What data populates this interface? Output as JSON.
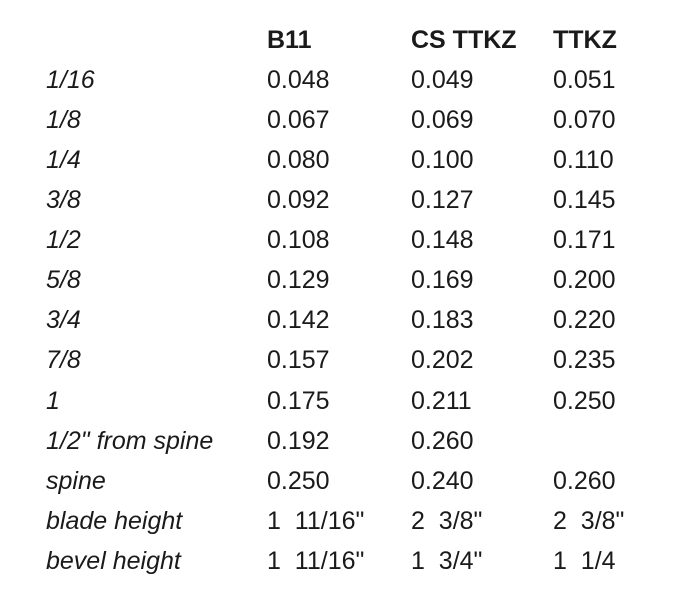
{
  "table": {
    "columns": [
      "",
      "B11",
      "CS TTKZ",
      "TTKZ"
    ],
    "rows": [
      {
        "label": "1/16",
        "b11": "0.048",
        "cs_ttkz": "0.049",
        "ttkz": "0.051"
      },
      {
        "label": "1/8",
        "b11": "0.067",
        "cs_ttkz": "0.069",
        "ttkz": "0.070"
      },
      {
        "label": "1/4",
        "b11": "0.080",
        "cs_ttkz": "0.100",
        "ttkz": "0.110"
      },
      {
        "label": "3/8",
        "b11": "0.092",
        "cs_ttkz": "0.127",
        "ttkz": "0.145"
      },
      {
        "label": "1/2",
        "b11": "0.108",
        "cs_ttkz": "0.148",
        "ttkz": "0.171"
      },
      {
        "label": "5/8",
        "b11": "0.129",
        "cs_ttkz": "0.169",
        "ttkz": "0.200"
      },
      {
        "label": "3/4",
        "b11": "0.142",
        "cs_ttkz": "0.183",
        "ttkz": "0.220"
      },
      {
        "label": "7/8",
        "b11": "0.157",
        "cs_ttkz": "0.202",
        "ttkz": "0.235"
      },
      {
        "label": "1",
        "b11": "0.175",
        "cs_ttkz": "0.211",
        "ttkz": "0.250"
      },
      {
        "label": "1/2\" from spine",
        "b11": "0.192",
        "cs_ttkz": "0.260",
        "ttkz": ""
      },
      {
        "label": "spine",
        "b11": "0.250",
        "cs_ttkz": "0.240",
        "ttkz": "0.260"
      },
      {
        "label": "blade height",
        "b11": "1  11/16\"",
        "cs_ttkz": "2  3/8\"",
        "ttkz": "2  3/8\""
      },
      {
        "label": "bevel height",
        "b11": "1  11/16\"",
        "cs_ttkz": "1  3/4\"",
        "ttkz": "1  1/4"
      }
    ]
  }
}
